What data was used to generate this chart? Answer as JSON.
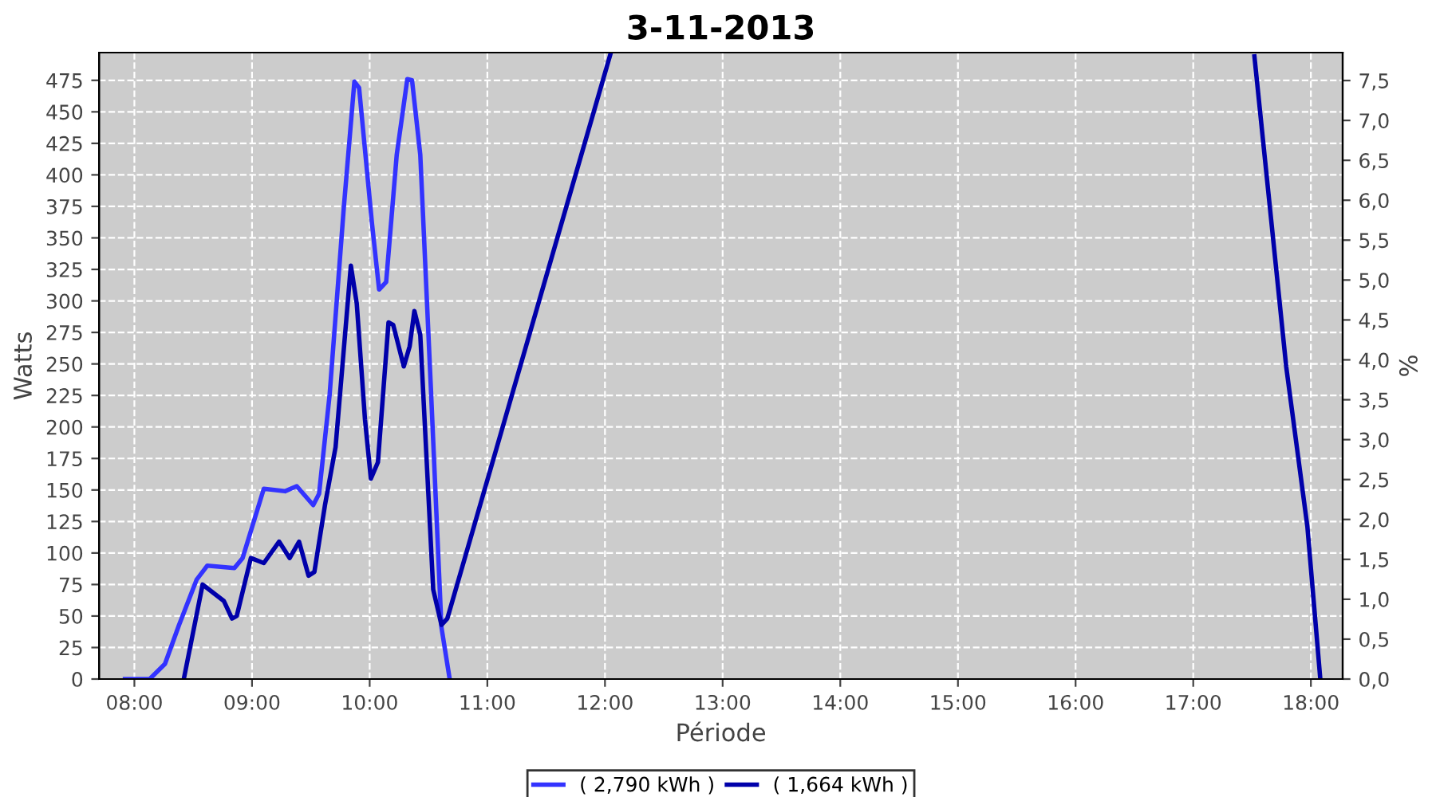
{
  "chart_data": {
    "type": "line",
    "title": "3-11-2013",
    "xlabel": "Période",
    "ylabel": "Watts",
    "y2label": "%",
    "xlim": [
      7.7,
      18.27
    ],
    "xticks": [
      {
        "value": 8,
        "label": "08:00"
      },
      {
        "value": 9,
        "label": "09:00"
      },
      {
        "value": 10,
        "label": "10:00"
      },
      {
        "value": 11,
        "label": "11:00"
      },
      {
        "value": 12,
        "label": "12:00"
      },
      {
        "value": 13,
        "label": "13:00"
      },
      {
        "value": 14,
        "label": "14:00"
      },
      {
        "value": 15,
        "label": "15:00"
      },
      {
        "value": 16,
        "label": "16:00"
      },
      {
        "value": 17,
        "label": "17:00"
      },
      {
        "value": 18,
        "label": "18:00"
      }
    ],
    "ylim": [
      0,
      497
    ],
    "yticks": [
      0,
      25,
      50,
      75,
      100,
      125,
      150,
      175,
      200,
      225,
      250,
      275,
      300,
      325,
      350,
      375,
      400,
      425,
      450,
      475
    ],
    "y2lim": [
      0,
      7.85
    ],
    "y2ticks": [
      {
        "value": 0,
        "label": "0,0"
      },
      {
        "value": 0.5,
        "label": "0,5"
      },
      {
        "value": 1,
        "label": "1,0"
      },
      {
        "value": 1.5,
        "label": "1,5"
      },
      {
        "value": 2,
        "label": "2,0"
      },
      {
        "value": 2.5,
        "label": "2,5"
      },
      {
        "value": 3,
        "label": "3,0"
      },
      {
        "value": 3.5,
        "label": "3,5"
      },
      {
        "value": 4,
        "label": "4,0"
      },
      {
        "value": 4.5,
        "label": "4,5"
      },
      {
        "value": 5,
        "label": "5,0"
      },
      {
        "value": 5.5,
        "label": "5,5"
      },
      {
        "value": 6,
        "label": "6,0"
      },
      {
        "value": 6.5,
        "label": "6,5"
      },
      {
        "value": 7,
        "label": "7,0"
      },
      {
        "value": 7.5,
        "label": "7,5"
      }
    ],
    "grid": true,
    "legend": "bottom",
    "marker": "none",
    "line_style": "solid",
    "series": [
      {
        "name": "( 2,790 kWh )",
        "color": "#3333ff",
        "x": [
          7.92,
          8.13,
          8.26,
          8.38,
          8.53,
          8.62,
          8.85,
          8.92,
          9.1,
          9.28,
          9.38,
          9.52,
          9.57,
          9.66,
          9.78,
          9.87,
          9.91,
          10.02,
          10.08,
          10.14,
          10.23,
          10.32,
          10.36,
          10.43,
          10.52,
          10.61,
          10.68
        ],
        "values": [
          0,
          0,
          12,
          43,
          79,
          90,
          88,
          96,
          151,
          149,
          153,
          138,
          147,
          226,
          374,
          474,
          469,
          361,
          309,
          315,
          416,
          476,
          475,
          416,
          231,
          41,
          0
        ]
      },
      {
        "name": "( 1,664 kWh )",
        "color": "#0000aa",
        "x": [
          8.42,
          8.58,
          8.76,
          8.83,
          8.87,
          8.99,
          9.1,
          9.23,
          9.32,
          9.4,
          9.48,
          9.53,
          9.62,
          9.71,
          9.84,
          9.89,
          9.96,
          10.01,
          10.07,
          10.16,
          10.2,
          10.29,
          10.34,
          10.38,
          10.43,
          10.54,
          10.61,
          10.66,
          12.05,
          14.8,
          17.52,
          17.79,
          17.97,
          18.08
        ],
        "values": [
          0,
          75,
          62,
          48,
          50,
          96,
          92,
          109,
          96,
          109,
          82,
          85,
          138,
          184,
          328,
          298,
          206,
          159,
          172,
          283,
          281,
          248,
          264,
          292,
          273,
          71,
          43,
          48,
          497,
          null,
          494,
          248,
          121,
          0
        ]
      }
    ]
  }
}
